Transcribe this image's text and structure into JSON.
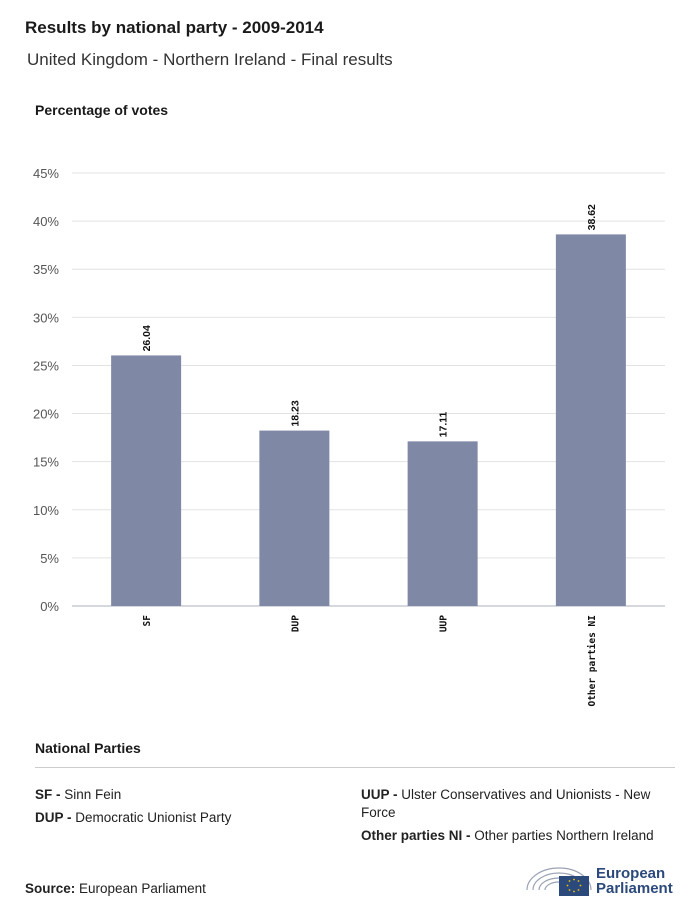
{
  "header": {
    "title": "Results by national party - 2009-2014",
    "subtitle": "United Kingdom - Northern Ireland - Final results"
  },
  "chart_data": {
    "type": "bar",
    "title": "Results by national party - 2009-2014",
    "subtitle": "United Kingdom - Northern Ireland - Final results",
    "ylabel": "Percentage of votes",
    "xlabel": "",
    "categories": [
      "SF",
      "DUP",
      "UUP",
      "Other parties NI"
    ],
    "values": [
      26.04,
      18.23,
      17.11,
      38.62
    ],
    "value_labels": [
      "26.04",
      "18.23",
      "17.11",
      "38.62"
    ],
    "ylim": [
      0,
      45
    ],
    "yticks": [
      "0%",
      "5%",
      "10%",
      "15%",
      "20%",
      "25%",
      "30%",
      "35%",
      "40%",
      "45%"
    ],
    "grid": true,
    "bar_color": "#7f89a6"
  },
  "legend": {
    "title": "National Parties",
    "items": [
      {
        "abbr": "SF -",
        "name": "Sinn Fein"
      },
      {
        "abbr": "DUP -",
        "name": "Democratic Unionist Party"
      },
      {
        "abbr": "UUP -",
        "name": "Ulster Conservatives and Unionists - New Force"
      },
      {
        "abbr": "Other parties NI -",
        "name": "Other parties Northern Ireland"
      }
    ]
  },
  "footer": {
    "source_label": "Source:",
    "source_value": "European Parliament",
    "logo_line1": "European",
    "logo_line2": "Parliament"
  }
}
